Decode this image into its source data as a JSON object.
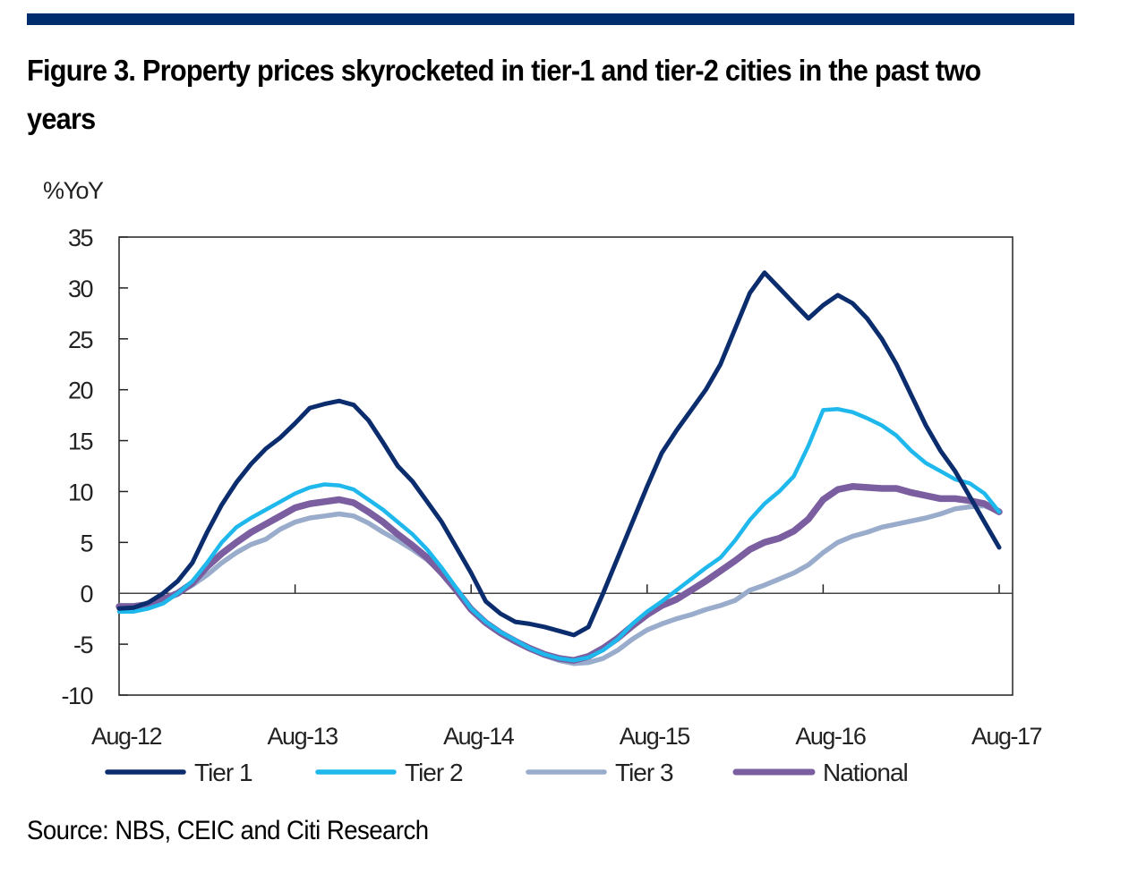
{
  "figure": {
    "title": "Figure 3. Property prices skyrocketed in tier-1 and tier-2 cities in the past two years",
    "source": "Source: NBS, CEIC and Citi Research",
    "accent_color": "#002d6e"
  },
  "chart_data": {
    "type": "line",
    "title": "Property prices skyrocketed in tier-1 and tier-2 cities in the past two years",
    "xlabel": "",
    "ylabel": "%YoY",
    "ylim": [
      -10,
      35
    ],
    "yticks": [
      35,
      30,
      25,
      20,
      15,
      10,
      5,
      0,
      -5,
      -10
    ],
    "ytick_labels": [
      "35",
      "30",
      "25",
      "20",
      "15",
      "10",
      "5",
      "0",
      "-5",
      "-10"
    ],
    "x_start": "Aug-12",
    "x_end": "Aug-17",
    "x_frequency": "monthly",
    "xtick_labels": [
      "Aug-12",
      "Aug-13",
      "Aug-14",
      "Aug-15",
      "Aug-16",
      "Aug-17"
    ],
    "xtick_month_index": [
      0,
      12,
      24,
      36,
      48,
      60
    ],
    "grid": false,
    "legend_position": "bottom",
    "series": [
      {
        "name": "Tier 1",
        "color": "#0b2d6e",
        "values": [
          -1.5,
          -1.4,
          -0.9,
          0.0,
          1.2,
          3.0,
          6.0,
          8.7,
          10.9,
          12.7,
          14.2,
          15.3,
          16.7,
          18.2,
          18.6,
          18.9,
          18.5,
          17.0,
          14.8,
          12.5,
          11.0,
          9.0,
          7.0,
          4.5,
          2.0,
          -0.8,
          -2.0,
          -2.8,
          -3.0,
          -3.3,
          -3.7,
          -4.1,
          -3.3,
          0.0,
          3.5,
          7.0,
          10.5,
          13.8,
          16.0,
          18.0,
          20.0,
          22.5,
          26.0,
          29.5,
          31.5,
          30.0,
          28.5,
          27.0,
          28.3,
          29.3,
          28.5,
          27.0,
          25.0,
          22.5,
          19.5,
          16.5,
          14.0,
          12.0,
          9.5,
          7.0,
          4.5
        ]
      },
      {
        "name": "Tier 2",
        "color": "#1fb8ec",
        "values": [
          -1.8,
          -1.8,
          -1.5,
          -1.0,
          0.0,
          1.2,
          3.0,
          5.0,
          6.5,
          7.4,
          8.2,
          9.0,
          9.8,
          10.4,
          10.7,
          10.6,
          10.2,
          9.2,
          8.2,
          7.0,
          5.8,
          4.3,
          2.5,
          0.5,
          -1.5,
          -2.8,
          -3.8,
          -4.6,
          -5.4,
          -6.0,
          -6.4,
          -6.6,
          -6.3,
          -5.6,
          -4.5,
          -3.0,
          -1.8,
          -0.8,
          0.3,
          1.4,
          2.5,
          3.5,
          5.2,
          7.2,
          8.8,
          10.0,
          11.5,
          14.5,
          18.0,
          18.1,
          17.8,
          17.2,
          16.5,
          15.5,
          14.0,
          12.8,
          12.0,
          11.2,
          10.8,
          9.8,
          8.0
        ]
      },
      {
        "name": "Tier 3",
        "color": "#9aaccb",
        "values": [
          -1.2,
          -1.2,
          -1.0,
          -0.6,
          0.0,
          0.8,
          1.8,
          3.0,
          4.0,
          4.8,
          5.3,
          6.3,
          7.0,
          7.4,
          7.6,
          7.8,
          7.6,
          6.9,
          6.0,
          5.2,
          4.3,
          3.3,
          2.0,
          0.4,
          -1.4,
          -2.8,
          -3.8,
          -4.7,
          -5.5,
          -6.1,
          -6.6,
          -6.9,
          -6.8,
          -6.4,
          -5.6,
          -4.5,
          -3.6,
          -3.0,
          -2.5,
          -2.1,
          -1.6,
          -1.2,
          -0.7,
          0.3,
          0.8,
          1.4,
          2.0,
          2.8,
          4.0,
          5.0,
          5.6,
          6.0,
          6.5,
          6.8,
          7.1,
          7.4,
          7.8,
          8.3,
          8.5,
          8.6,
          8.0
        ]
      },
      {
        "name": "National",
        "color": "#7a5ea0",
        "values": [
          -1.3,
          -1.3,
          -1.1,
          -0.6,
          0.0,
          1.0,
          2.6,
          3.9,
          5.0,
          6.0,
          6.8,
          7.6,
          8.4,
          8.8,
          9.0,
          9.2,
          8.9,
          8.0,
          7.0,
          5.8,
          4.7,
          3.5,
          2.0,
          0.3,
          -1.6,
          -2.9,
          -3.9,
          -4.7,
          -5.4,
          -6.0,
          -6.4,
          -6.6,
          -6.2,
          -5.4,
          -4.4,
          -3.2,
          -2.1,
          -1.2,
          -0.6,
          0.3,
          1.2,
          2.2,
          3.2,
          4.3,
          5.0,
          5.4,
          6.1,
          7.3,
          9.2,
          10.2,
          10.5,
          10.4,
          10.3,
          10.3,
          9.9,
          9.6,
          9.3,
          9.3,
          9.1,
          8.8,
          8.0
        ]
      }
    ]
  }
}
